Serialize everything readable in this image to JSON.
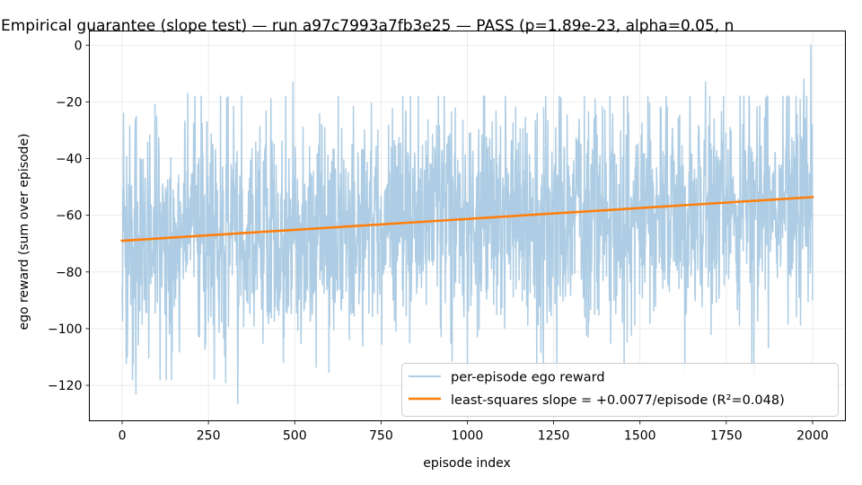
{
  "chart_data": {
    "type": "line",
    "title": "Empirical guarantee (slope test) — run a97c7993a7fb3e25 — PASS (p=1.89e-23, alpha=0.05, n",
    "xlabel": "episode index",
    "ylabel": "ego reward (sum over episode)",
    "xlim": [
      -95,
      2095
    ],
    "ylim": [
      -132.5,
      5
    ],
    "xticks": [
      0,
      250,
      500,
      750,
      1000,
      1250,
      1500,
      1750,
      2000
    ],
    "yticks": [
      -120,
      -100,
      -80,
      -60,
      -40,
      -20,
      0
    ],
    "grid": true,
    "legend_position": "lower-right",
    "raw_series": {
      "name": "per-episode ego reward",
      "color": "#aecde4",
      "x_start": 0,
      "x_end": 2000,
      "approx_mean": -61,
      "approx_min": -126.5,
      "approx_max": 0,
      "keypoints": [
        {
          "x": 0,
          "y": -85
        },
        {
          "x": 4,
          "y": -24
        },
        {
          "x": 15,
          "y": -110
        },
        {
          "x": 40,
          "y": -123
        },
        {
          "x": 100,
          "y": -25
        },
        {
          "x": 190,
          "y": -17
        },
        {
          "x": 300,
          "y": -119
        },
        {
          "x": 335,
          "y": -126.5
        },
        {
          "x": 495,
          "y": -13
        },
        {
          "x": 1000,
          "y": -115
        },
        {
          "x": 1690,
          "y": -13
        },
        {
          "x": 1830,
          "y": -117
        },
        {
          "x": 1975,
          "y": -12
        },
        {
          "x": 1995,
          "y": 0
        },
        {
          "x": 2000,
          "y": -90
        }
      ]
    },
    "fit_series": {
      "name": "least-squares slope = +0.0077/episode (R²=0.048)",
      "color": "#ff7f0e",
      "x": [
        0,
        2000
      ],
      "y": [
        -69,
        -53.6
      ],
      "slope": 0.0077,
      "r_squared": 0.048
    }
  }
}
